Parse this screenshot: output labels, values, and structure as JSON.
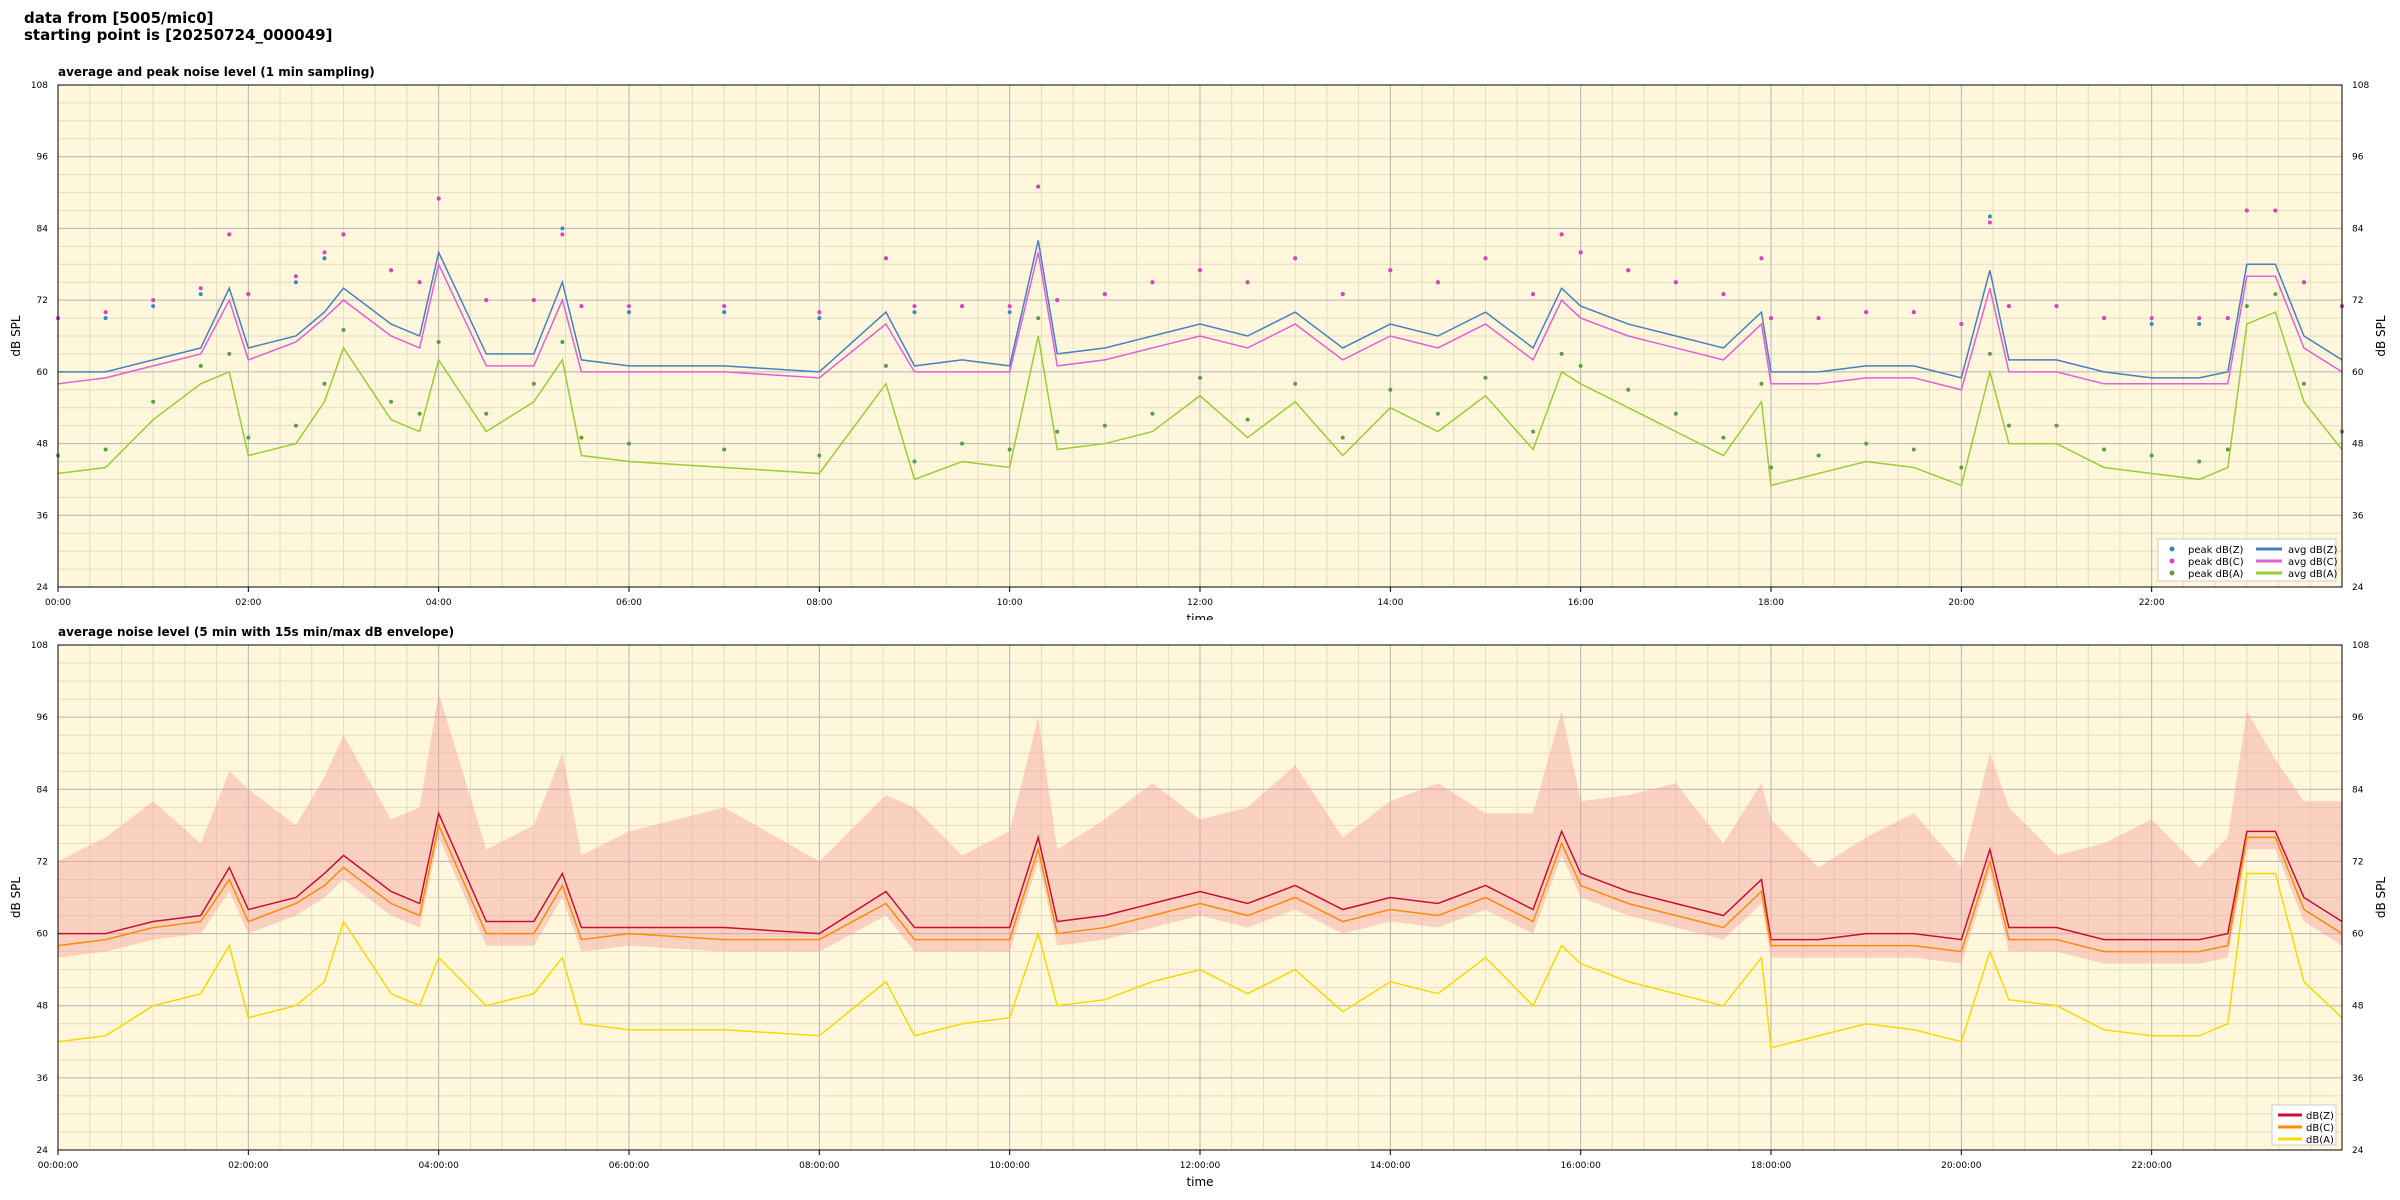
{
  "header": {
    "line1": "data from [5005/mic0]",
    "line2": "starting point is [20250724_000049]"
  },
  "colors": {
    "plot_bg": "#fff7dc",
    "grid_major": "#b4b4b4",
    "grid_minor": "#e6dcc0",
    "peak_z": "#3a86c8",
    "peak_c": "#e040c0",
    "peak_a": "#5aa040",
    "avg_z": "#4a7fbf",
    "avg_c": "#e060d8",
    "avg_a": "#9acd32",
    "line_z": "#c8102e",
    "line_c": "#ff8c00",
    "line_a": "#ffd700",
    "envelope": "#f4a0a0"
  },
  "chart_data": [
    {
      "type": "line",
      "title": "average and peak noise level (1 min sampling)",
      "xlabel": "time",
      "ylabel": "dB SPL",
      "xlim": [
        0,
        24
      ],
      "ylim": [
        24,
        108
      ],
      "yticks": [
        24,
        36,
        48,
        60,
        72,
        84,
        96,
        108
      ],
      "xtick_labels": [
        "00:00",
        "02:00",
        "04:00",
        "06:00",
        "08:00",
        "10:00",
        "12:00",
        "14:00",
        "16:00",
        "18:00",
        "20:00",
        "22:00"
      ],
      "grid": true,
      "legend_position": "bottom-right",
      "legend": [
        "peak dB(Z)",
        "peak dB(C)",
        "peak dB(A)",
        "avg dB(Z)",
        "avg dB(C)",
        "avg dB(A)"
      ],
      "x": [
        0,
        0.5,
        1,
        1.5,
        1.8,
        2,
        2.5,
        2.8,
        3,
        3.5,
        3.8,
        4,
        4.5,
        5,
        5.3,
        5.5,
        6,
        7,
        8,
        8.7,
        9,
        9.5,
        10,
        10.3,
        10.5,
        11,
        11.5,
        12,
        12.5,
        13,
        13.5,
        14,
        14.5,
        15,
        15.5,
        15.8,
        16,
        16.5,
        17,
        17.5,
        17.9,
        18,
        18.5,
        19,
        19.5,
        20,
        20.3,
        20.5,
        21,
        21.5,
        22,
        22.5,
        22.8,
        23,
        23.3,
        23.6,
        24
      ],
      "series": [
        {
          "name": "avg dB(Z)",
          "values": [
            60,
            60,
            62,
            64,
            74,
            64,
            66,
            70,
            74,
            68,
            66,
            80,
            63,
            63,
            75,
            62,
            61,
            61,
            60,
            70,
            61,
            62,
            61,
            82,
            63,
            64,
            66,
            68,
            66,
            70,
            64,
            68,
            66,
            70,
            64,
            74,
            71,
            68,
            66,
            64,
            70,
            60,
            60,
            61,
            61,
            59,
            77,
            62,
            62,
            60,
            59,
            59,
            60,
            78,
            78,
            66,
            62
          ]
        },
        {
          "name": "avg dB(C)",
          "values": [
            58,
            59,
            61,
            63,
            72,
            62,
            65,
            69,
            72,
            66,
            64,
            78,
            61,
            61,
            72,
            60,
            60,
            60,
            59,
            68,
            60,
            60,
            60,
            80,
            61,
            62,
            64,
            66,
            64,
            68,
            62,
            66,
            64,
            68,
            62,
            72,
            69,
            66,
            64,
            62,
            68,
            58,
            58,
            59,
            59,
            57,
            74,
            60,
            60,
            58,
            58,
            58,
            58,
            76,
            76,
            64,
            60
          ]
        },
        {
          "name": "avg dB(A)",
          "values": [
            43,
            44,
            52,
            58,
            60,
            46,
            48,
            55,
            64,
            52,
            50,
            62,
            50,
            55,
            62,
            46,
            45,
            44,
            43,
            58,
            42,
            45,
            44,
            66,
            47,
            48,
            50,
            56,
            49,
            55,
            46,
            54,
            50,
            56,
            47,
            60,
            58,
            54,
            50,
            46,
            55,
            41,
            43,
            45,
            44,
            41,
            60,
            48,
            48,
            44,
            43,
            42,
            44,
            68,
            70,
            55,
            47
          ]
        }
      ]
    },
    {
      "type": "line",
      "title": "average noise level (5 min with 15s min/max dB envelope)",
      "xlabel": "time",
      "ylabel": "dB SPL",
      "xlim": [
        0,
        24
      ],
      "ylim": [
        24,
        108
      ],
      "yticks": [
        24,
        36,
        48,
        60,
        72,
        84,
        96,
        108
      ],
      "xtick_labels": [
        "00:00:00",
        "02:00:00",
        "04:00:00",
        "06:00:00",
        "08:00:00",
        "10:00:00",
        "12:00:00",
        "14:00:00",
        "16:00:00",
        "18:00:00",
        "20:00:00",
        "22:00:00"
      ],
      "grid": true,
      "legend_position": "bottom-right",
      "legend": [
        "dB(Z)",
        "dB(C)",
        "dB(A)"
      ],
      "x": [
        0,
        0.5,
        1,
        1.5,
        1.8,
        2,
        2.5,
        2.8,
        3,
        3.5,
        3.8,
        4,
        4.5,
        5,
        5.3,
        5.5,
        6,
        7,
        8,
        8.7,
        9,
        9.5,
        10,
        10.3,
        10.5,
        11,
        11.5,
        12,
        12.5,
        13,
        13.5,
        14,
        14.5,
        15,
        15.5,
        15.8,
        16,
        16.5,
        17,
        17.5,
        17.9,
        18,
        18.5,
        19,
        19.5,
        20,
        20.3,
        20.5,
        21,
        21.5,
        22,
        22.5,
        22.8,
        23,
        23.3,
        23.6,
        24
      ],
      "series": [
        {
          "name": "dB(Z)",
          "values": [
            60,
            60,
            62,
            63,
            71,
            64,
            66,
            70,
            73,
            67,
            65,
            80,
            62,
            62,
            70,
            61,
            61,
            61,
            60,
            67,
            61,
            61,
            61,
            76,
            62,
            63,
            65,
            67,
            65,
            68,
            64,
            66,
            65,
            68,
            64,
            77,
            70,
            67,
            65,
            63,
            69,
            59,
            59,
            60,
            60,
            59,
            74,
            61,
            61,
            59,
            59,
            59,
            60,
            77,
            77,
            66,
            62
          ]
        },
        {
          "name": "dB(C)",
          "values": [
            58,
            59,
            61,
            62,
            69,
            62,
            65,
            68,
            71,
            65,
            63,
            78,
            60,
            60,
            68,
            59,
            60,
            59,
            59,
            65,
            59,
            59,
            59,
            74,
            60,
            61,
            63,
            65,
            63,
            66,
            62,
            64,
            63,
            66,
            62,
            75,
            68,
            65,
            63,
            61,
            67,
            58,
            58,
            58,
            58,
            57,
            72,
            59,
            59,
            57,
            57,
            57,
            58,
            76,
            76,
            64,
            60
          ]
        },
        {
          "name": "dB(A)",
          "values": [
            42,
            43,
            48,
            50,
            58,
            46,
            48,
            52,
            62,
            50,
            48,
            56,
            48,
            50,
            56,
            45,
            44,
            44,
            43,
            52,
            43,
            45,
            46,
            60,
            48,
            49,
            52,
            54,
            50,
            54,
            47,
            52,
            50,
            56,
            48,
            58,
            55,
            52,
            50,
            48,
            56,
            41,
            43,
            45,
            44,
            42,
            57,
            49,
            48,
            44,
            43,
            43,
            45,
            70,
            70,
            52,
            46
          ]
        }
      ]
    }
  ]
}
